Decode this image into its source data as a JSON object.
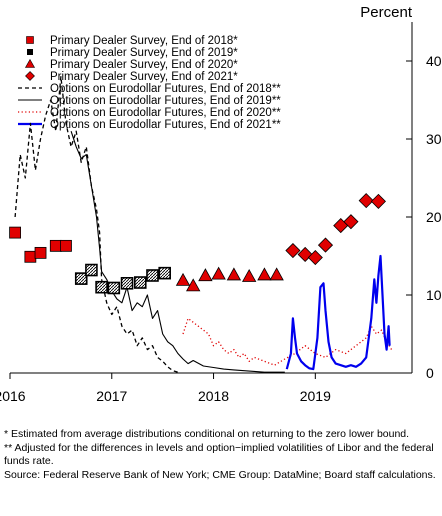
{
  "chart_data": {
    "type": "line",
    "unit_label": "Percent",
    "x_ticks": [
      "2016",
      "2017",
      "2018",
      "2019"
    ],
    "xlim": [
      2016.0,
      2019.95
    ],
    "ylim": [
      0,
      45
    ],
    "y_ticks": [
      "0",
      "10",
      "20",
      "30",
      "40"
    ],
    "grid": false,
    "legend_position": "top-left",
    "legend": [
      {
        "label": "Primary Dealer Survey, End of 2018*",
        "marker": "square",
        "color": "#e00000"
      },
      {
        "label": "Primary Dealer Survey, End of 2019*",
        "marker": "square-hatched",
        "color": "#000000"
      },
      {
        "label": "Primary Dealer Survey, End of 2020*",
        "marker": "triangle",
        "color": "#e00000"
      },
      {
        "label": "Primary Dealer Survey, End of 2021*",
        "marker": "diamond",
        "color": "#e00000"
      },
      {
        "label": "Options on Eurodollar Futures, End of 2018**",
        "line": "dashed",
        "color": "#000000"
      },
      {
        "label": "Options on Eurodollar Futures, End of 2019**",
        "line": "solid",
        "color": "#000000"
      },
      {
        "label": "Options on Eurodollar Futures, End of 2020**",
        "line": "dotted",
        "color": "#e00000"
      },
      {
        "label": "Options on Eurodollar Futures, End of 2021**",
        "line": "solid-thick",
        "color": "#0000ee"
      }
    ],
    "survey_series": [
      {
        "name": "Primary Dealer Survey, End of 2018*",
        "marker": "square",
        "color": "#e00000",
        "points": [
          [
            2016.05,
            18.0
          ],
          [
            2016.2,
            14.9
          ],
          [
            2016.3,
            15.4
          ],
          [
            2016.45,
            16.3
          ],
          [
            2016.55,
            16.3
          ]
        ]
      },
      {
        "name": "Primary Dealer Survey, End of 2019*",
        "marker": "square-hatched",
        "color": "#000000",
        "points": [
          [
            2016.7,
            12.1
          ],
          [
            2016.8,
            13.2
          ],
          [
            2016.9,
            11.0
          ],
          [
            2017.02,
            10.9
          ],
          [
            2017.15,
            11.5
          ],
          [
            2017.28,
            11.6
          ],
          [
            2017.4,
            12.5
          ],
          [
            2017.52,
            12.8
          ]
        ]
      },
      {
        "name": "Primary Dealer Survey, End of 2020*",
        "marker": "triangle",
        "color": "#e00000",
        "points": [
          [
            2017.7,
            11.9
          ],
          [
            2017.8,
            11.2
          ],
          [
            2017.92,
            12.5
          ],
          [
            2018.05,
            12.7
          ],
          [
            2018.2,
            12.6
          ],
          [
            2018.35,
            12.4
          ],
          [
            2018.5,
            12.6
          ],
          [
            2018.62,
            12.6
          ]
        ]
      },
      {
        "name": "Primary Dealer Survey, End of 2021*",
        "marker": "diamond",
        "color": "#e00000",
        "points": [
          [
            2018.78,
            15.7
          ],
          [
            2018.9,
            15.2
          ],
          [
            2019.0,
            14.8
          ],
          [
            2019.1,
            16.4
          ],
          [
            2019.25,
            18.9
          ],
          [
            2019.35,
            19.4
          ],
          [
            2019.5,
            22.1
          ],
          [
            2019.62,
            22.0
          ]
        ]
      }
    ],
    "options_series": [
      {
        "name": "Options on Eurodollar Futures, End of 2018**",
        "line": "dashed",
        "color": "#000000",
        "points": [
          [
            2016.05,
            20.0
          ],
          [
            2016.1,
            28.0
          ],
          [
            2016.15,
            25.0
          ],
          [
            2016.2,
            32.0
          ],
          [
            2016.25,
            26.0
          ],
          [
            2016.3,
            30.0
          ],
          [
            2016.35,
            33.0
          ],
          [
            2016.4,
            35.0
          ],
          [
            2016.45,
            31.0
          ],
          [
            2016.5,
            38.0
          ],
          [
            2016.55,
            32.0
          ],
          [
            2016.6,
            29.0
          ],
          [
            2016.65,
            31.0
          ],
          [
            2016.7,
            27.0
          ],
          [
            2016.75,
            29.0
          ],
          [
            2016.8,
            24.0
          ],
          [
            2016.85,
            21.0
          ],
          [
            2016.88,
            18.0
          ],
          [
            2016.9,
            12.0
          ],
          [
            2016.95,
            9.0
          ],
          [
            2017.0,
            7.5
          ],
          [
            2017.05,
            8.5
          ],
          [
            2017.1,
            6.0
          ],
          [
            2017.15,
            5.0
          ],
          [
            2017.2,
            5.5
          ],
          [
            2017.25,
            3.5
          ],
          [
            2017.3,
            4.5
          ],
          [
            2017.35,
            3.0
          ],
          [
            2017.4,
            3.5
          ],
          [
            2017.45,
            2.0
          ],
          [
            2017.5,
            1.5
          ],
          [
            2017.55,
            0.8
          ],
          [
            2017.6,
            0.3
          ],
          [
            2017.65,
            0.1
          ]
        ]
      },
      {
        "name": "Options on Eurodollar Futures, End of 2019**",
        "line": "solid",
        "color": "#000000",
        "points": [
          [
            2016.6,
            31.0
          ],
          [
            2016.65,
            29.0
          ],
          [
            2016.7,
            27.5
          ],
          [
            2016.75,
            28.0
          ],
          [
            2016.8,
            24.0
          ],
          [
            2016.85,
            20.0
          ],
          [
            2016.88,
            16.0
          ],
          [
            2016.9,
            13.0
          ],
          [
            2016.95,
            12.0
          ],
          [
            2017.0,
            10.5
          ],
          [
            2017.05,
            9.5
          ],
          [
            2017.1,
            9.0
          ],
          [
            2017.15,
            11.0
          ],
          [
            2017.2,
            8.0
          ],
          [
            2017.25,
            9.0
          ],
          [
            2017.3,
            8.5
          ],
          [
            2017.35,
            10.0
          ],
          [
            2017.4,
            7.0
          ],
          [
            2017.45,
            8.0
          ],
          [
            2017.5,
            5.0
          ],
          [
            2017.55,
            4.0
          ],
          [
            2017.6,
            3.5
          ],
          [
            2017.65,
            2.5
          ],
          [
            2017.7,
            1.8
          ],
          [
            2017.75,
            1.2
          ],
          [
            2017.8,
            1.6
          ],
          [
            2017.9,
            0.9
          ],
          [
            2018.0,
            0.7
          ],
          [
            2018.1,
            0.5
          ],
          [
            2018.2,
            0.4
          ],
          [
            2018.3,
            0.3
          ],
          [
            2018.4,
            0.2
          ],
          [
            2018.5,
            0.1
          ],
          [
            2018.6,
            0.1
          ],
          [
            2018.7,
            0.1
          ]
        ]
      },
      {
        "name": "Options on Eurodollar Futures, End of 2020**",
        "line": "dotted",
        "color": "#e00000",
        "points": [
          [
            2017.7,
            5.0
          ],
          [
            2017.75,
            7.0
          ],
          [
            2017.8,
            6.5
          ],
          [
            2017.85,
            6.0
          ],
          [
            2017.9,
            5.5
          ],
          [
            2017.95,
            5.0
          ],
          [
            2018.0,
            3.5
          ],
          [
            2018.05,
            4.0
          ],
          [
            2018.1,
            3.0
          ],
          [
            2018.15,
            2.5
          ],
          [
            2018.2,
            3.0
          ],
          [
            2018.25,
            2.0
          ],
          [
            2018.3,
            2.5
          ],
          [
            2018.35,
            1.5
          ],
          [
            2018.4,
            2.0
          ],
          [
            2018.5,
            1.5
          ],
          [
            2018.6,
            1.0
          ],
          [
            2018.7,
            1.8
          ],
          [
            2018.8,
            2.5
          ],
          [
            2018.9,
            3.5
          ],
          [
            2019.0,
            2.5
          ],
          [
            2019.1,
            2.0
          ],
          [
            2019.2,
            3.0
          ],
          [
            2019.3,
            2.5
          ],
          [
            2019.4,
            3.5
          ],
          [
            2019.5,
            4.5
          ],
          [
            2019.55,
            6.0
          ],
          [
            2019.6,
            5.0
          ],
          [
            2019.65,
            5.5
          ],
          [
            2019.7,
            4.0
          ],
          [
            2019.75,
            3.0
          ]
        ]
      },
      {
        "name": "Options on Eurodollar Futures, End of 2021**",
        "line": "solid-thick",
        "color": "#0000ee",
        "points": [
          [
            2018.72,
            0.5
          ],
          [
            2018.76,
            2.5
          ],
          [
            2018.78,
            7.0
          ],
          [
            2018.8,
            4.5
          ],
          [
            2018.82,
            2.5
          ],
          [
            2018.86,
            1.5
          ],
          [
            2018.9,
            1.0
          ],
          [
            2018.94,
            0.6
          ],
          [
            2018.98,
            0.5
          ],
          [
            2019.02,
            4.5
          ],
          [
            2019.05,
            11.0
          ],
          [
            2019.08,
            11.5
          ],
          [
            2019.1,
            8.0
          ],
          [
            2019.13,
            4.0
          ],
          [
            2019.16,
            2.0
          ],
          [
            2019.2,
            1.2
          ],
          [
            2019.25,
            1.0
          ],
          [
            2019.3,
            0.8
          ],
          [
            2019.35,
            1.0
          ],
          [
            2019.4,
            0.8
          ],
          [
            2019.45,
            1.2
          ],
          [
            2019.5,
            2.0
          ],
          [
            2019.55,
            7.0
          ],
          [
            2019.58,
            12.0
          ],
          [
            2019.6,
            9.0
          ],
          [
            2019.62,
            12.5
          ],
          [
            2019.64,
            15.0
          ],
          [
            2019.66,
            10.0
          ],
          [
            2019.68,
            5.0
          ],
          [
            2019.7,
            3.0
          ],
          [
            2019.72,
            6.0
          ],
          [
            2019.73,
            3.5
          ]
        ]
      }
    ]
  },
  "notes": {
    "note_1": "* Estimated from average distributions conditional on returning to the zero lower bound.",
    "note_2": "** Adjusted for the differences in levels and option−implied volatilities of Libor and the federal funds rate.",
    "source": "Source: Federal Reserve Bank of New York; CME Group: DataMine; Board staff calculations."
  }
}
